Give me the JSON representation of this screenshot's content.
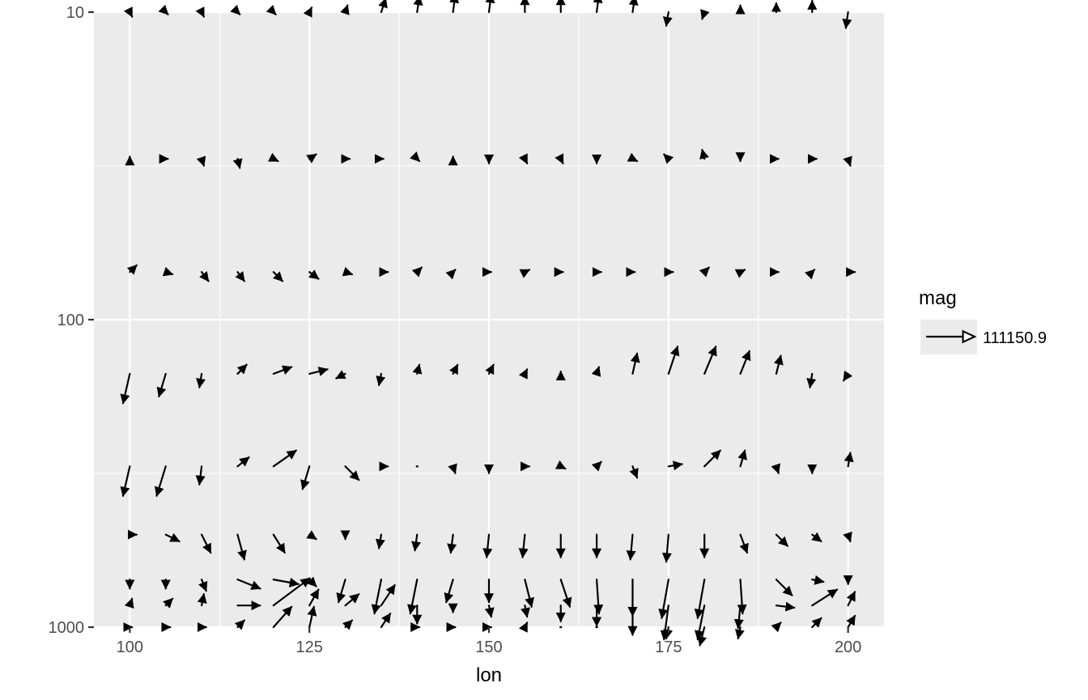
{
  "chart_data": {
    "type": "vector-field",
    "title": "",
    "xlabel": "lon",
    "ylabel": "",
    "xlim": [
      95,
      205
    ],
    "ylim": [
      1000,
      10
    ],
    "y_scale": "log10-reversed",
    "x_ticks": [
      100,
      125,
      150,
      175,
      200
    ],
    "x_tick_labels": [
      "100",
      "125",
      "150",
      "175",
      "200"
    ],
    "y_ticks": [
      10,
      100,
      1000
    ],
    "y_tick_labels": [
      "10",
      "100",
      "1000"
    ],
    "grid": true,
    "background": "#ebebeb",
    "arrow_color": "#000000",
    "levels": [
      10,
      30,
      70,
      150,
      300,
      500,
      700,
      850,
      1000
    ],
    "lons": [
      100,
      105,
      110,
      115,
      120,
      125,
      130,
      135,
      140,
      145,
      150,
      155,
      160,
      165,
      170,
      175,
      180,
      185,
      190,
      195,
      200
    ],
    "vectors_note_units": "[u, w] components in data units of magnitude per grid row, ordered by lon",
    "rows": [
      {
        "level": 10,
        "u": [
          0.1,
          0.1,
          0.1,
          0.1,
          0.1,
          0.1,
          0.1,
          0.2,
          0.1,
          0.1,
          0.1,
          0.0,
          0.0,
          0.1,
          0.1,
          -0.1,
          -0.1,
          0.0,
          0.0,
          0.0,
          -0.1
        ],
        "v": [
          -0.2,
          -0.1,
          -0.2,
          -0.1,
          -0.1,
          0.2,
          0.3,
          0.6,
          0.7,
          0.8,
          0.8,
          0.7,
          0.7,
          0.8,
          0.7,
          -0.6,
          -0.3,
          0.3,
          0.4,
          0.5,
          -0.7
        ]
      },
      {
        "level": 30,
        "u": [
          0.0,
          0.1,
          0.1,
          0.1,
          0.2,
          0.3,
          0.2,
          0.1,
          0.1,
          0.0,
          0.0,
          0.1,
          0.1,
          0.0,
          0.2,
          -0.2,
          -0.1,
          0.0,
          0.1,
          0.2,
          0.1
        ],
        "v": [
          0.1,
          0.0,
          -0.3,
          -0.4,
          -0.1,
          0.2,
          0.0,
          0.0,
          -0.1,
          0.1,
          -0.2,
          -0.2,
          -0.2,
          -0.2,
          -0.1,
          0.2,
          0.4,
          -0.1,
          0.0,
          0.0,
          -0.3
        ]
      },
      {
        "level": 70,
        "u": [
          0.3,
          0.3,
          0.3,
          0.3,
          0.4,
          0.4,
          0.3,
          0.3,
          0.2,
          0.1,
          0.1,
          0.2,
          0.1,
          0.2,
          0.1,
          0.2,
          0.2,
          0.2,
          0.1,
          0.1,
          0.3
        ],
        "v": [
          0.3,
          -0.1,
          -0.4,
          -0.4,
          -0.4,
          -0.3,
          -0.1,
          0.0,
          0.2,
          0.1,
          0.0,
          0.1,
          0.0,
          0.0,
          0.0,
          0.0,
          0.2,
          0.1,
          0.0,
          0.1,
          0.0
        ]
      },
      {
        "level": 150,
        "u": [
          -0.3,
          -0.3,
          -0.1,
          0.4,
          0.8,
          0.8,
          -0.4,
          -0.1,
          0.1,
          0.2,
          0.2,
          0.1,
          0.0,
          0.1,
          0.2,
          0.4,
          0.5,
          0.4,
          0.2,
          -0.1,
          -0.2
        ],
        "v": [
          -1.3,
          -1.0,
          -0.6,
          0.4,
          0.3,
          0.2,
          -0.2,
          -0.5,
          0.4,
          0.4,
          0.4,
          0.2,
          0.1,
          0.3,
          0.9,
          1.2,
          1.2,
          1.0,
          0.8,
          -0.6,
          -0.3
        ]
      },
      {
        "level": 300,
        "u": [
          -0.3,
          -0.4,
          -0.1,
          0.5,
          1.0,
          -0.3,
          0.6,
          0.3,
          0.0,
          0.1,
          0.0,
          0.2,
          0.2,
          0.2,
          0.2,
          0.6,
          0.7,
          0.2,
          0.1,
          0.0,
          0.1
        ],
        "v": [
          -1.3,
          -1.3,
          -0.8,
          0.4,
          0.7,
          -1.0,
          -0.6,
          0.0,
          0.0,
          -0.3,
          -0.3,
          0.0,
          -0.1,
          0.2,
          -0.5,
          0.1,
          0.7,
          0.7,
          -0.3,
          -0.3,
          0.6
        ]
      },
      {
        "level": 500,
        "u": [
          0.3,
          0.6,
          0.4,
          0.3,
          0.5,
          0.3,
          0.0,
          -0.1,
          -0.1,
          -0.1,
          -0.1,
          -0.1,
          0.0,
          0.0,
          -0.1,
          -0.1,
          0.0,
          0.3,
          0.5,
          0.4,
          0.1
        ],
        "v": [
          0.0,
          -0.3,
          -0.8,
          -1.1,
          -0.8,
          -0.2,
          -0.2,
          -0.6,
          -0.7,
          -0.8,
          -1.0,
          -1.0,
          -1.0,
          -1.0,
          -1.1,
          -1.2,
          -1.0,
          -0.8,
          -0.5,
          -0.3,
          -0.3
        ]
      },
      {
        "level": 700,
        "u": [
          0.0,
          0.0,
          0.2,
          1.0,
          1.1,
          0.3,
          -0.3,
          -0.3,
          -0.3,
          -0.3,
          0.0,
          0.3,
          0.4,
          0.1,
          0.0,
          -0.3,
          -0.3,
          0.1,
          0.7,
          0.5,
          0.0
        ],
        "v": [
          -0.4,
          -0.4,
          -0.5,
          -0.4,
          -0.2,
          -0.3,
          -1.0,
          -1.5,
          -1.5,
          -1.0,
          -1.0,
          -1.2,
          -1.2,
          -1.5,
          -1.6,
          -1.7,
          -1.7,
          -1.5,
          -0.7,
          -0.1,
          -0.2
        ]
      },
      {
        "level": 850,
        "u": [
          0.1,
          0.3,
          0.1,
          1.0,
          1.6,
          0.4,
          0.6,
          0.6,
          0.0,
          0.0,
          0.1,
          0.1,
          0.0,
          0.0,
          0.0,
          -0.2,
          -0.3,
          -0.1,
          0.8,
          1.1,
          0.3
        ],
        "v": [
          0.3,
          0.3,
          0.5,
          0.0,
          1.2,
          0.7,
          0.5,
          0.9,
          -0.8,
          -0.3,
          -0.5,
          -0.5,
          -0.7,
          -0.9,
          -1.3,
          -1.5,
          -1.5,
          -1.0,
          -0.1,
          0.7,
          0.6
        ]
      },
      {
        "level": 1000,
        "u": [
          0.1,
          0.2,
          0.2,
          0.3,
          0.8,
          0.2,
          0.3,
          0.4,
          0.1,
          0.1,
          0.1,
          0.1,
          0.0,
          0.0,
          0.0,
          -0.1,
          -0.2,
          -0.1,
          0.2,
          0.4,
          0.3
        ],
        "v": [
          0.0,
          0.0,
          0.0,
          0.3,
          0.9,
          0.9,
          0.3,
          0.6,
          0.0,
          0.0,
          0.0,
          0.2,
          0.0,
          0.0,
          0.0,
          -0.5,
          -0.8,
          -0.5,
          0.2,
          0.4,
          0.5
        ]
      }
    ],
    "legend": {
      "title": "mag",
      "label": "111150.9",
      "placement": "right"
    }
  }
}
